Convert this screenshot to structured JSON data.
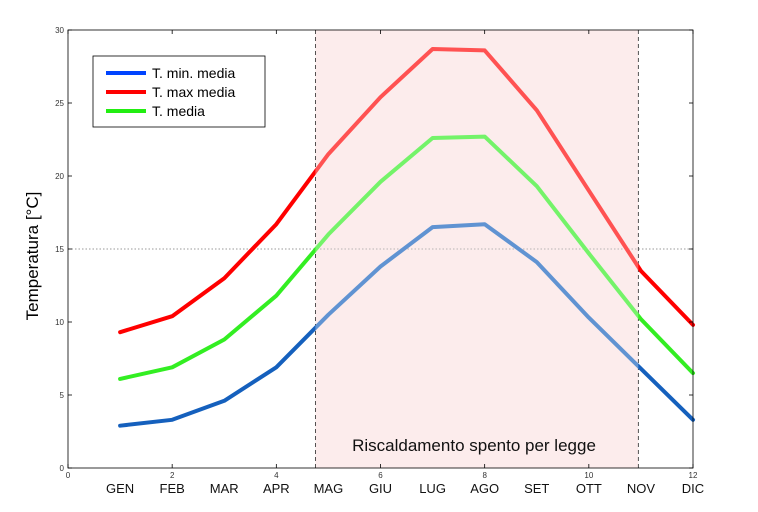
{
  "chart_data": {
    "type": "line",
    "xlabel": "",
    "ylabel": "Temperatura  [°C]",
    "xlim": [
      0,
      12
    ],
    "ylim": [
      0,
      30
    ],
    "x_numeric_ticks": [
      "0",
      "2",
      "4",
      "6",
      "8",
      "10",
      "12"
    ],
    "y_ticks": [
      "0",
      "5",
      "10",
      "15",
      "20",
      "25",
      "30"
    ],
    "categories": [
      "GEN",
      "FEB",
      "MAR",
      "APR",
      "MAG",
      "GIU",
      "LUG",
      "AGO",
      "SET",
      "OTT",
      "NOV",
      "DIC"
    ],
    "x": [
      1,
      2,
      3,
      4,
      5,
      6,
      7,
      8,
      9,
      10,
      11,
      12
    ],
    "series": [
      {
        "name": "T. min. media",
        "color": "#1560bd",
        "values": [
          2.9,
          3.3,
          4.6,
          6.9,
          10.5,
          13.8,
          16.5,
          16.7,
          14.1,
          10.3,
          6.8,
          3.3
        ]
      },
      {
        "name": "T. max media",
        "color": "#ff0000",
        "values": [
          9.3,
          10.4,
          13.0,
          16.7,
          21.5,
          25.4,
          28.7,
          28.6,
          24.5,
          19.0,
          13.5,
          9.8
        ]
      },
      {
        "name": "T. media",
        "color": "#33ee22",
        "values": [
          6.1,
          6.9,
          8.8,
          11.8,
          16.0,
          19.6,
          22.6,
          22.7,
          19.3,
          14.7,
          10.2,
          6.5
        ]
      }
    ],
    "reference_line": {
      "y": 15,
      "style": "dotted"
    },
    "shaded_region": {
      "x_from": 4.75,
      "x_to": 10.95,
      "fill_color": "#fbe3e3",
      "label": "Riscaldamento spento per legge"
    },
    "legend_position": "top-left",
    "grid": false
  }
}
